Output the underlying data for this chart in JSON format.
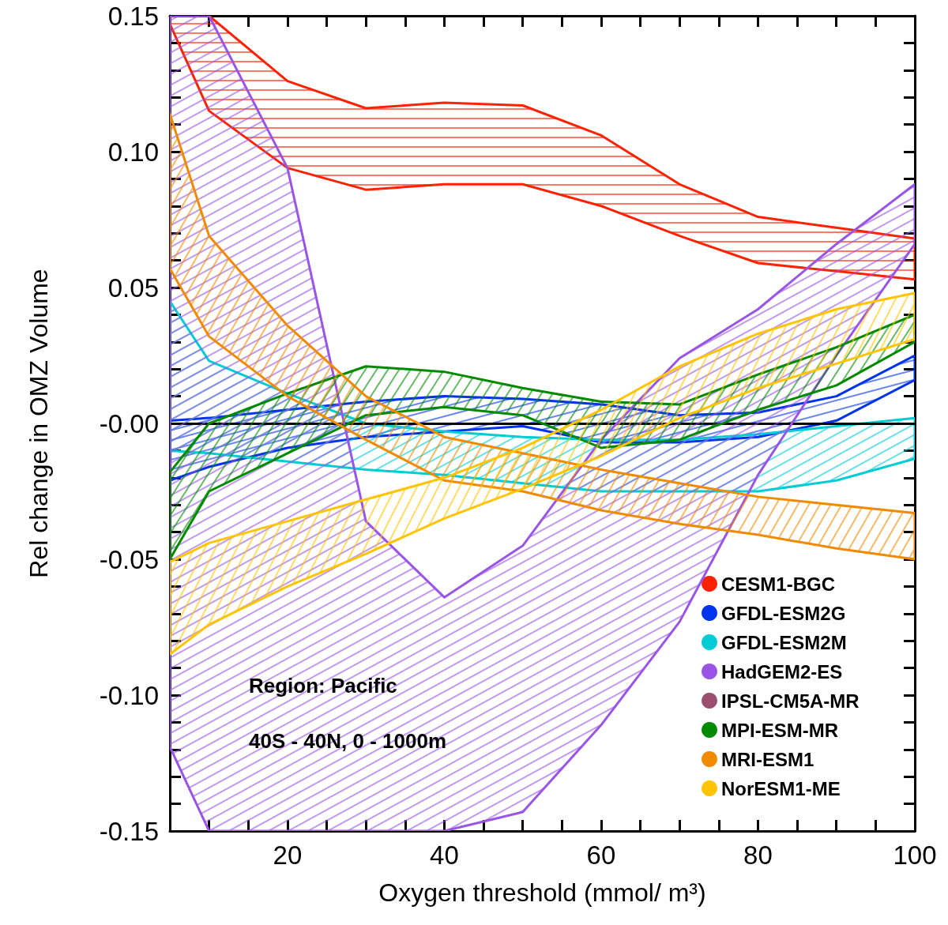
{
  "chart_data": {
    "type": "area",
    "xlabel": "Oxygen threshold (mmol/ m³)",
    "ylabel": "Rel change in OMZ Volume",
    "annotations": [
      "Region: Pacific",
      "40S - 40N, 0 - 1000m"
    ],
    "x": [
      5,
      10,
      20,
      30,
      40,
      50,
      60,
      70,
      80,
      90,
      100
    ],
    "series": [
      {
        "name": "CESM1-BGC",
        "color": "#ff2200",
        "values": [
          null,
          null,
          null,
          null,
          null,
          null,
          null,
          null,
          null,
          null,
          null
        ],
        "upper": [
          0.15,
          0.15,
          0.126,
          0.116,
          0.118,
          0.117,
          0.106,
          0.088,
          0.076,
          0.072,
          0.068
        ],
        "lower": [
          0.147,
          0.115,
          0.094,
          0.086,
          0.088,
          0.088,
          0.08,
          0.069,
          0.059,
          0.056,
          0.053
        ]
      },
      {
        "name": "GFDL-ESM2G",
        "color": "#0033ee",
        "values": [
          null,
          null,
          null,
          null,
          null,
          null,
          null,
          null,
          null,
          null,
          null
        ],
        "upper": [
          0.001,
          0.002,
          0.005,
          0.008,
          0.01,
          0.009,
          0.007,
          0.003,
          0.004,
          0.01,
          0.025
        ],
        "lower": [
          -0.021,
          -0.016,
          -0.009,
          -0.005,
          -0.003,
          -0.001,
          -0.007,
          -0.007,
          -0.005,
          0.001,
          0.016
        ]
      },
      {
        "name": "GFDL-ESM2M",
        "color": "#00ccd6",
        "values": [
          null,
          null,
          null,
          null,
          null,
          null,
          null,
          null,
          null,
          null,
          null
        ],
        "upper": [
          0.045,
          0.023,
          0.011,
          0.0,
          -0.003,
          -0.005,
          -0.006,
          -0.006,
          -0.004,
          -0.001,
          0.002
        ],
        "lower": [
          -0.01,
          -0.011,
          -0.014,
          -0.017,
          -0.019,
          -0.022,
          -0.025,
          -0.025,
          -0.025,
          -0.021,
          -0.013
        ]
      },
      {
        "name": "HadGEM2-ES",
        "color": "#9955e6",
        "values": [
          null,
          null,
          null,
          null,
          null,
          null,
          null,
          null,
          null,
          null,
          null
        ],
        "upper": [
          0.15,
          0.15,
          0.094,
          -0.036,
          -0.064,
          -0.045,
          -0.006,
          0.024,
          0.042,
          0.066,
          0.088
        ],
        "lower": [
          -0.119,
          -0.15,
          -0.15,
          -0.15,
          -0.15,
          -0.143,
          -0.111,
          -0.073,
          -0.019,
          0.025,
          0.066
        ]
      },
      {
        "name": "IPSL-CM5A-MR",
        "color": "#9b4f6f",
        "values": [
          null,
          null,
          null,
          null,
          null,
          null,
          null,
          null,
          null,
          null,
          null
        ]
      },
      {
        "name": "MPI-ESM-MR",
        "color": "#008a00",
        "values": [
          null,
          null,
          null,
          null,
          null,
          null,
          null,
          null,
          null,
          null,
          null
        ],
        "upper": [
          -0.018,
          0.0,
          0.011,
          0.021,
          0.019,
          0.013,
          0.008,
          0.007,
          0.018,
          0.028,
          0.04
        ],
        "lower": [
          -0.05,
          -0.025,
          -0.011,
          0.003,
          0.006,
          0.003,
          -0.009,
          -0.006,
          0.005,
          0.014,
          0.03
        ]
      },
      {
        "name": "MRI-ESM1",
        "color": "#f08a00",
        "values": [
          null,
          null,
          null,
          null,
          null,
          null,
          null,
          null,
          null,
          null,
          null
        ],
        "upper": [
          0.114,
          0.069,
          0.036,
          0.01,
          -0.005,
          -0.011,
          -0.017,
          -0.022,
          -0.027,
          -0.03,
          -0.033
        ],
        "lower": [
          0.057,
          0.032,
          0.01,
          -0.006,
          -0.021,
          -0.025,
          -0.032,
          -0.037,
          -0.041,
          -0.046,
          -0.05
        ]
      },
      {
        "name": "NorESM1-ME",
        "color": "#ffc400",
        "values": [
          null,
          null,
          null,
          null,
          null,
          null,
          null,
          null,
          null,
          null,
          null
        ],
        "upper": [
          -0.051,
          -0.044,
          -0.036,
          -0.028,
          -0.02,
          -0.009,
          0.005,
          0.021,
          0.033,
          0.042,
          0.048
        ],
        "lower": [
          -0.085,
          -0.074,
          -0.06,
          -0.048,
          -0.035,
          -0.024,
          -0.012,
          0.002,
          0.013,
          0.022,
          0.031
        ]
      }
    ],
    "xlim": [
      5,
      100
    ],
    "xticks": [
      {
        "value": 10,
        "label": null
      },
      {
        "value": 15,
        "label": null
      },
      20,
      {
        "value": 25,
        "label": null
      },
      {
        "value": 30,
        "label": null
      },
      {
        "value": 35,
        "label": null
      },
      40,
      {
        "value": 45,
        "label": null
      },
      {
        "value": 50,
        "label": null
      },
      {
        "value": 55,
        "label": null
      },
      60,
      {
        "value": 65,
        "label": null
      },
      {
        "value": 70,
        "label": null
      },
      {
        "value": 75,
        "label": null
      },
      80,
      {
        "value": 85,
        "label": null
      },
      {
        "value": 90,
        "label": null
      },
      {
        "value": 95,
        "label": null
      },
      100
    ],
    "ylim": [
      -0.15,
      0.15
    ],
    "yticks": [
      {
        "value": -0.15,
        "label": "-0.15"
      },
      {
        "value": -0.14,
        "label": null
      },
      {
        "value": -0.13,
        "label": null
      },
      {
        "value": -0.12,
        "label": null
      },
      {
        "value": -0.11,
        "label": null
      },
      {
        "value": -0.1,
        "label": "-0.10"
      },
      {
        "value": -0.09,
        "label": null
      },
      {
        "value": -0.08,
        "label": null
      },
      {
        "value": -0.07,
        "label": null
      },
      {
        "value": -0.06,
        "label": null
      },
      {
        "value": -0.05,
        "label": "-0.05"
      },
      {
        "value": -0.04,
        "label": null
      },
      {
        "value": -0.03,
        "label": null
      },
      {
        "value": -0.02,
        "label": null
      },
      {
        "value": -0.01,
        "label": null
      },
      {
        "value": 0,
        "label": "-0.00"
      },
      {
        "value": 0.01,
        "label": null
      },
      {
        "value": 0.02,
        "label": null
      },
      {
        "value": 0.03,
        "label": null
      },
      {
        "value": 0.04,
        "label": null
      },
      {
        "value": 0.05,
        "label": "0.05"
      },
      {
        "value": 0.06,
        "label": null
      },
      {
        "value": 0.07,
        "label": null
      },
      {
        "value": 0.08,
        "label": null
      },
      {
        "value": 0.09,
        "label": null
      },
      {
        "value": 0.1,
        "label": "0.10"
      },
      {
        "value": 0.11,
        "label": null
      },
      {
        "value": 0.12,
        "label": null
      },
      {
        "value": 0.13,
        "label": null
      },
      {
        "value": 0.14,
        "label": null
      },
      {
        "value": 0.15,
        "label": "0.15"
      }
    ],
    "ref_lines": [
      {
        "axis": "y",
        "value": 0,
        "color": "#000000"
      }
    ],
    "grid": false,
    "legend": "bottom right",
    "marker": "none"
  }
}
